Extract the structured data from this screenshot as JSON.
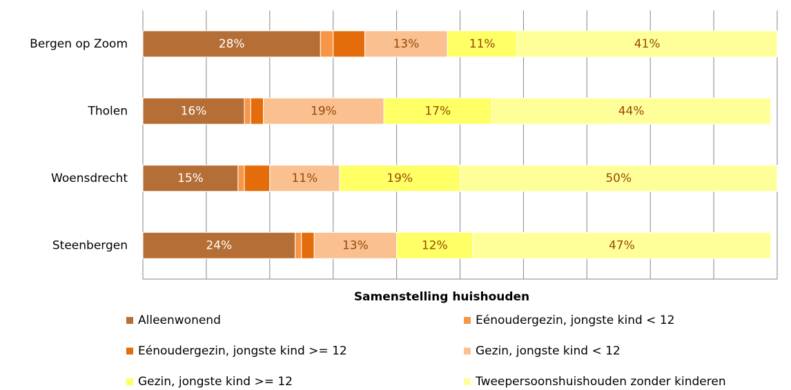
{
  "chart_data": {
    "type": "stacked-bar-horizontal",
    "x_label": "Samenstelling huishouden",
    "categories": [
      "Bergen op Zoom",
      "Tholen",
      "Woensdrecht",
      "Steenbergen"
    ],
    "xlim": [
      0,
      100
    ],
    "xticks": [
      0,
      10,
      20,
      30,
      40,
      50,
      60,
      70,
      80,
      90,
      100
    ],
    "grid": true,
    "series": [
      {
        "name": "Alleenwonend",
        "color": "#b56e35",
        "values": [
          28,
          16,
          15,
          24
        ],
        "value_labels": [
          "28%",
          "16%",
          "15%",
          "24%"
        ]
      },
      {
        "name": "Eénoudergezin, jongste kind < 12",
        "color": "#f79646",
        "values": [
          2,
          1,
          1,
          1
        ],
        "value_labels": [
          null,
          null,
          null,
          null
        ]
      },
      {
        "name": "Eénoudergezin, jongste kind >= 12",
        "color": "#e46c0a",
        "values": [
          5,
          2,
          4,
          2
        ],
        "value_labels": [
          null,
          null,
          null,
          null
        ]
      },
      {
        "name": "Gezin, jongste kind < 12",
        "color": "#fac090",
        "values": [
          13,
          19,
          11,
          13
        ],
        "value_labels": [
          "13%",
          "19%",
          "11%",
          "13%"
        ]
      },
      {
        "name": "Gezin, jongste kind >= 12",
        "color": "#ffff66",
        "values": [
          11,
          17,
          19,
          12
        ],
        "value_labels": [
          "11%",
          "17%",
          "19%",
          "12%"
        ]
      },
      {
        "name": "Tweepersoonshuishouden zonder kinderen",
        "color": "#ffff99",
        "values": [
          41,
          44,
          50,
          47
        ],
        "value_labels": [
          "41%",
          "44%",
          "50%",
          "47%"
        ]
      }
    ]
  }
}
